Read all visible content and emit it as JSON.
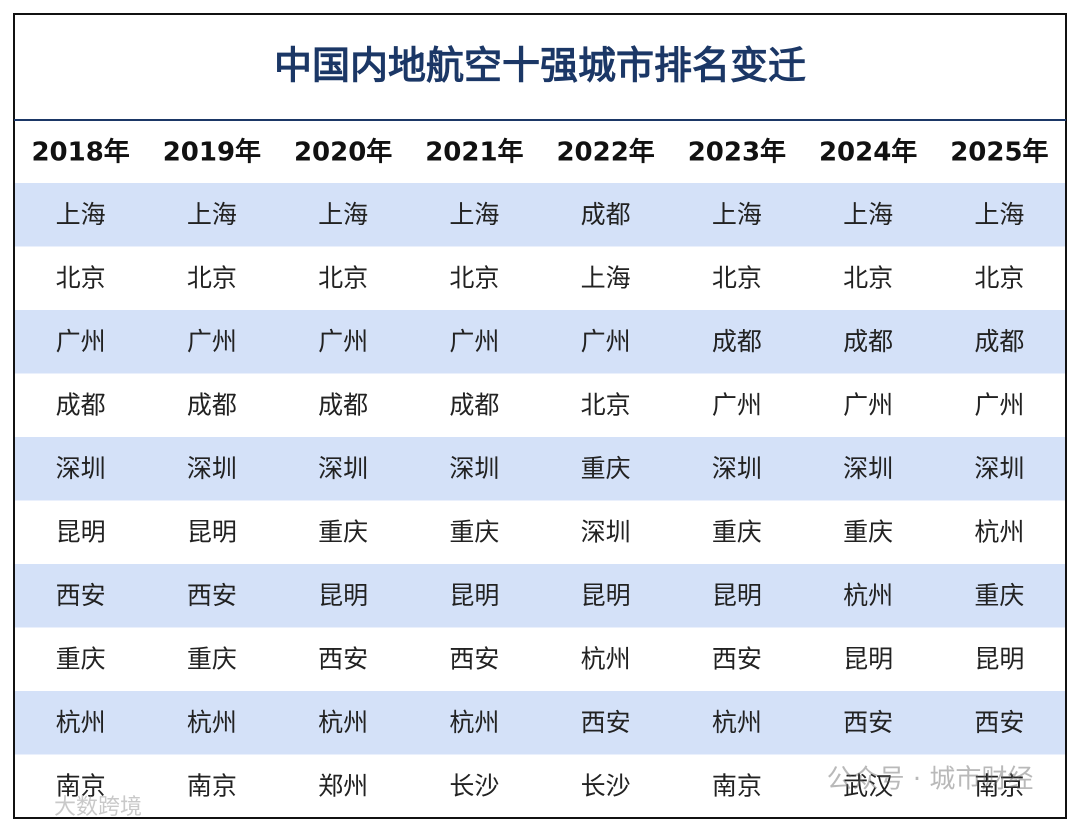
{
  "title": "中国内地航空十强城市排名变迁",
  "table": {
    "header": [
      "2018年",
      "2019年",
      "2020年",
      "2021年",
      "2022年",
      "2023年",
      "2024年",
      "2025年"
    ],
    "rows": [
      [
        "上海",
        "上海",
        "上海",
        "上海",
        "成都",
        "上海",
        "上海",
        "上海"
      ],
      [
        "北京",
        "北京",
        "北京",
        "北京",
        "上海",
        "北京",
        "北京",
        "北京"
      ],
      [
        "广州",
        "广州",
        "广州",
        "广州",
        "广州",
        "成都",
        "成都",
        "成都"
      ],
      [
        "成都",
        "成都",
        "成都",
        "成都",
        "北京",
        "广州",
        "广州",
        "广州"
      ],
      [
        "深圳",
        "深圳",
        "深圳",
        "深圳",
        "重庆",
        "深圳",
        "深圳",
        "深圳"
      ],
      [
        "昆明",
        "昆明",
        "重庆",
        "重庆",
        "深圳",
        "重庆",
        "重庆",
        "杭州"
      ],
      [
        "西安",
        "西安",
        "昆明",
        "昆明",
        "昆明",
        "昆明",
        "杭州",
        "重庆"
      ],
      [
        "重庆",
        "重庆",
        "西安",
        "西安",
        "杭州",
        "西安",
        "昆明",
        "昆明"
      ],
      [
        "杭州",
        "杭州",
        "杭州",
        "杭州",
        "西安",
        "杭州",
        "西安",
        "西安"
      ],
      [
        "南京",
        "南京",
        "郑州",
        "长沙",
        "长沙",
        "南京",
        "武汉",
        "南京"
      ]
    ]
  },
  "watermarks": [
    "公众号 · 城市财经",
    "大数跨境"
  ]
}
